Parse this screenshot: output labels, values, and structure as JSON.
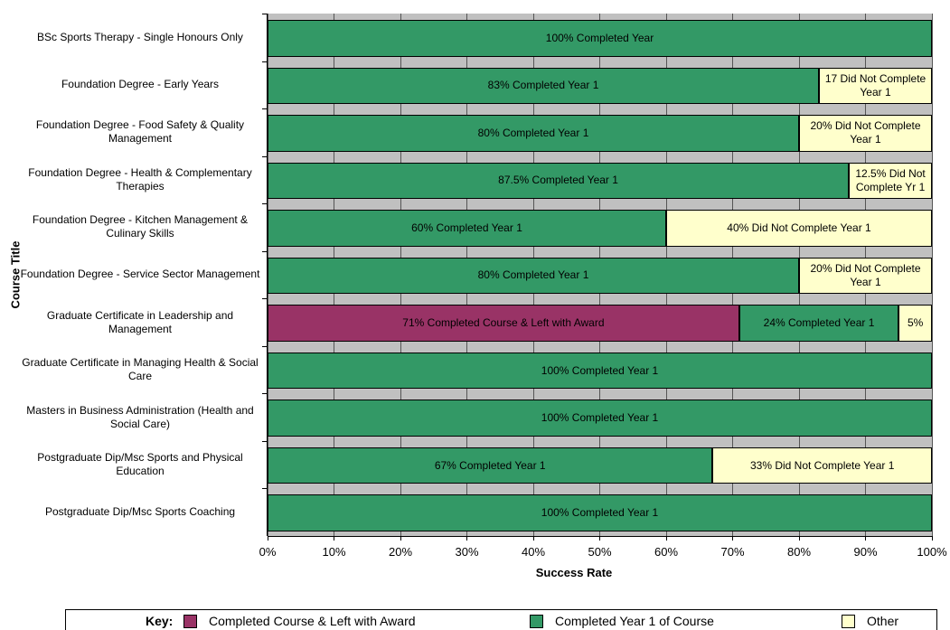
{
  "chart_data": {
    "type": "stacked-bar-horizontal",
    "x_label": "Success Rate",
    "y_label": "Course Title",
    "legend_title": "Key:",
    "categories": [
      "BSc Sports Therapy - Single Honours Only",
      "Foundation Degree - Early Years",
      "Foundation Degree - Food Safety & Quality Management",
      "Foundation Degree - Health & Complementary Therapies",
      "Foundation Degree - Kitchen Management & Culinary Skills",
      "Foundation Degree - Service Sector Management",
      "Graduate Certificate in Leadership and Management",
      "Graduate Certificate in Managing Health & Social Care",
      "Masters in Business Administration (Health and Social Care)",
      "Postgraduate Dip/Msc Sports and Physical Education",
      "Postgraduate Dip/Msc Sports Coaching"
    ],
    "series": [
      {
        "name": "Completed Course & Left with Award",
        "color": "#993366",
        "values": [
          null,
          null,
          null,
          null,
          null,
          null,
          71,
          null,
          null,
          null,
          null
        ],
        "value_labels": [
          null,
          null,
          null,
          null,
          null,
          null,
          "71% Completed Course & Left with Award",
          null,
          null,
          null,
          null
        ]
      },
      {
        "name": "Completed Year 1 of Course",
        "color": "#339966",
        "values": [
          100,
          83,
          80,
          87.5,
          60,
          80,
          24,
          100,
          100,
          67,
          100
        ],
        "value_labels": [
          "100% Completed Year",
          "83% Completed Year 1",
          "80% Completed Year 1",
          "87.5% Completed Year 1",
          "60% Completed Year 1",
          "80% Completed Year 1",
          "24% Completed Year 1",
          "100% Completed Year 1",
          "100% Completed Year 1",
          "67% Completed Year 1",
          "100% Completed Year 1"
        ]
      },
      {
        "name": "Other",
        "color": "#ffffcc",
        "values": [
          null,
          17,
          20,
          12.5,
          40,
          20,
          5,
          null,
          null,
          33,
          null
        ],
        "value_labels": [
          null,
          "17 Did Not Complete Year 1",
          "20% Did Not Complete Year 1",
          "12.5% Did Not Complete Yr 1",
          "40% Did Not Complete Year 1",
          "20% Did Not Complete Year 1",
          "5%",
          null,
          null,
          "33% Did Not Complete Year 1",
          null
        ]
      }
    ],
    "xlim": [
      0,
      100
    ],
    "xticks": [
      {
        "value": 0,
        "label": "0%"
      },
      {
        "value": 10,
        "label": "10%"
      },
      {
        "value": 20,
        "label": "20%"
      },
      {
        "value": 30,
        "label": "30%"
      },
      {
        "value": 40,
        "label": "40%"
      },
      {
        "value": 50,
        "label": "50%"
      },
      {
        "value": 60,
        "label": "60%"
      },
      {
        "value": 70,
        "label": "70%"
      },
      {
        "value": 80,
        "label": "80%"
      },
      {
        "value": 90,
        "label": "90%"
      },
      {
        "value": 100,
        "label": "100%"
      }
    ],
    "grid": true
  }
}
